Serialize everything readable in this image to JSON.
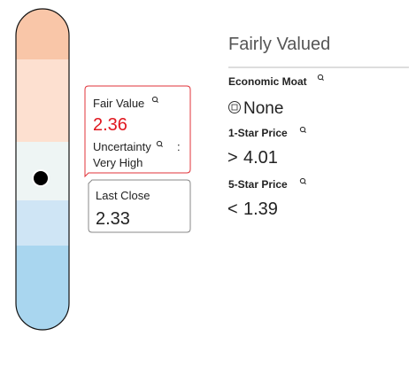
{
  "valuation": {
    "label": "Fairly Valued"
  },
  "fair_value": {
    "label": "Fair Value",
    "value": 2.36
  },
  "uncertainty": {
    "label": "Uncertainty",
    "separator": ":",
    "value": "Very High"
  },
  "last_close": {
    "label": "Last Close",
    "value": 2.33
  },
  "economic_moat": {
    "label": "Economic Moat",
    "value": "None"
  },
  "one_star_price": {
    "label": "1-Star Price",
    "comparator": ">",
    "value": 4.01
  },
  "five_star_price": {
    "label": "5-Star Price",
    "comparator": "<",
    "value": 1.39
  }
}
